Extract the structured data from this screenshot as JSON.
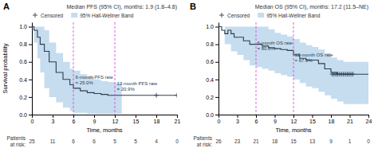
{
  "chart_data": [
    {
      "type": "step",
      "panel_label": "A",
      "title": "Median PFS (95% CI), months: 1.9 (1.8–4.8)",
      "xlabel": "Time, months",
      "ylabel": "Survival probability",
      "xlim": [
        0,
        21
      ],
      "ylim": [
        0,
        1.05
      ],
      "xticks": [
        0,
        3,
        6,
        9,
        12,
        15,
        18,
        21
      ],
      "yticks": [
        {
          "value": 0.0,
          "label": "0.0"
        },
        0.2,
        0.4,
        0.6,
        0.8,
        {
          "value": 1.0,
          "label": "1.0"
        }
      ],
      "grid": false,
      "legend": "top",
      "series": [
        {
          "color": "#2c3e50",
          "x": [
            0,
            0.3,
            0.3,
            0.8,
            0.8,
            1.2,
            1.2,
            1.8,
            1.8,
            2.5,
            2.5,
            3.5,
            3.5,
            4.5,
            4.5,
            5.5,
            5.5,
            6.0,
            6.0,
            7.0,
            7.0,
            8.0,
            8.0,
            9.0,
            9.0,
            10.0,
            10.0,
            11.0,
            11.0,
            12.0,
            12.0,
            13.0,
            13.0,
            18.0,
            18.0,
            21.0
          ],
          "values": [
            1.0,
            1.0,
            0.96,
            0.96,
            0.88,
            0.88,
            0.8,
            0.8,
            0.72,
            0.72,
            0.6,
            0.6,
            0.48,
            0.48,
            0.4,
            0.4,
            0.34,
            0.34,
            0.3,
            0.3,
            0.27,
            0.27,
            0.25,
            0.25,
            0.24,
            0.24,
            0.23,
            0.23,
            0.22,
            0.22,
            0.22,
            0.22,
            0.22,
            0.22,
            0.22,
            0.22
          ]
        },
        {
          "name": "Censored",
          "type": "scatter",
          "marker": "plus",
          "color": "#2c3e50",
          "x": [
            18.0,
            21.0
          ],
          "values": [
            0.22,
            0.22
          ]
        },
        {
          "name": "95% Hall-Wellner Band",
          "type": "area",
          "color": "#aecde8",
          "x": [
            0,
            0.3,
            0.8,
            1.2,
            1.8,
            2.5,
            3.5,
            4.5,
            5.5,
            6.0,
            7.0,
            8.0,
            9.0,
            10.0,
            11.0,
            12.0,
            13.0
          ],
          "lower": [
            1.0,
            0.82,
            0.64,
            0.48,
            0.3,
            0.2,
            0.14,
            0.08,
            0.04,
            0.02,
            0.02,
            0.01,
            0.01,
            0.01,
            0.01,
            0.01,
            0.01
          ],
          "upper": [
            1.0,
            1.0,
            1.0,
            1.0,
            0.96,
            0.82,
            0.7,
            0.6,
            0.52,
            0.5,
            0.46,
            0.43,
            0.4,
            0.38,
            0.37,
            0.36,
            0.36
          ]
        }
      ],
      "vlines": [
        {
          "x": 6,
          "color": "#cc44cc",
          "line_style": "dashed"
        },
        {
          "x": 12,
          "color": "#cc44cc",
          "line_style": "dashed"
        }
      ],
      "annotations": [
        {
          "x": 6.3,
          "y": 0.33,
          "text": "6-month PFS rate\n= 25.0%"
        },
        {
          "x": 12.3,
          "y": 0.26,
          "text": "12-month PFS rate\n= 20.9%"
        }
      ],
      "risk_label": "Patients\nat risk:",
      "risk_times": [
        0,
        3,
        6,
        9,
        12,
        15,
        18,
        21
      ],
      "patients_at_risk": [
        25,
        11,
        6,
        6,
        5,
        5,
        4,
        0
      ]
    },
    {
      "type": "step",
      "panel_label": "B",
      "title": "Median OS (95% CI), months: 17.2 (11.5–NE)",
      "xlabel": "Time, months",
      "xlim": [
        0,
        24
      ],
      "ylim": [
        0,
        1.05
      ],
      "xticks": [
        0,
        3,
        6,
        9,
        12,
        15,
        18,
        21,
        24
      ],
      "yticks": [
        {
          "value": 0.0,
          "label": "0.0"
        },
        0.2,
        0.4,
        0.6,
        0.8,
        {
          "value": 1.0,
          "label": "1.0"
        }
      ],
      "grid": false,
      "legend": "top",
      "series": [
        {
          "color": "#2c3e50",
          "x": [
            0,
            0.5,
            0.5,
            1.0,
            1.0,
            1.5,
            1.5,
            2.0,
            2.0,
            2.5,
            2.5,
            3.0,
            3.0,
            4.0,
            4.0,
            5.0,
            5.0,
            6.0,
            6.0,
            7.0,
            7.0,
            8.0,
            8.0,
            9.0,
            9.0,
            10.0,
            10.0,
            11.0,
            11.0,
            12.0,
            12.0,
            13.0,
            13.0,
            14.0,
            14.0,
            15.0,
            15.0,
            16.0,
            16.0,
            17.0,
            17.0,
            18.0,
            18.0,
            19.0,
            19.0,
            20.0,
            20.0,
            22.0,
            22.0,
            24.0
          ],
          "values": [
            1.0,
            1.0,
            0.96,
            0.96,
            0.92,
            0.92,
            0.96,
            0.96,
            0.92,
            0.92,
            0.88,
            0.88,
            0.88,
            0.88,
            0.84,
            0.84,
            0.8,
            0.8,
            0.8,
            0.8,
            0.78,
            0.78,
            0.76,
            0.76,
            0.75,
            0.75,
            0.74,
            0.74,
            0.73,
            0.73,
            0.68,
            0.68,
            0.64,
            0.64,
            0.62,
            0.62,
            0.62,
            0.62,
            0.58,
            0.58,
            0.52,
            0.52,
            0.48,
            0.48,
            0.46,
            0.46,
            0.46,
            0.46,
            0.46,
            0.46
          ]
        },
        {
          "name": "Censored",
          "type": "scatter",
          "marker": "plus",
          "color": "#2c3e50",
          "x": [
            18.2,
            18.5,
            18.8,
            19.1,
            19.4,
            19.7,
            20.0,
            20.3,
            20.6,
            20.9,
            21.2,
            21.5
          ],
          "values": [
            0.46,
            0.46,
            0.46,
            0.46,
            0.46,
            0.46,
            0.46,
            0.46,
            0.46,
            0.46,
            0.46,
            0.46
          ]
        },
        {
          "name": "95% Hall-Wellner Band",
          "type": "area",
          "color": "#aecde8",
          "x": [
            0,
            1,
            2,
            3,
            4,
            5,
            6,
            7,
            8,
            9,
            10,
            11,
            12,
            13,
            14,
            15,
            16,
            17,
            18,
            19,
            20,
            22,
            24
          ],
          "lower": [
            1.0,
            0.8,
            0.72,
            0.68,
            0.62,
            0.56,
            0.54,
            0.52,
            0.5,
            0.47,
            0.45,
            0.43,
            0.4,
            0.36,
            0.32,
            0.3,
            0.26,
            0.22,
            0.18,
            0.15,
            0.12,
            0.12,
            0.12
          ],
          "upper": [
            1.0,
            1.0,
            1.0,
            1.0,
            1.0,
            1.0,
            1.0,
            1.0,
            0.97,
            0.93,
            0.91,
            0.89,
            0.86,
            0.82,
            0.79,
            0.77,
            0.74,
            0.7,
            0.65,
            0.62,
            0.6,
            0.6,
            0.6
          ]
        }
      ],
      "vlines": [
        {
          "x": 6,
          "color": "#cc44cc",
          "line_style": "dashed"
        },
        {
          "x": 12,
          "color": "#cc44cc",
          "line_style": "dashed"
        }
      ],
      "annotations": [
        {
          "x": 6.2,
          "y": 0.72,
          "text": "6-month OS rate\n= 80.8%"
        },
        {
          "x": 12.2,
          "y": 0.58,
          "text": "12-month OS rate\n= 67.9%"
        }
      ],
      "risk_label": "Patients\nat risk:",
      "risk_times": [
        0,
        3,
        6,
        9,
        12,
        15,
        18,
        21,
        24
      ],
      "patients_at_risk": [
        26,
        23,
        21,
        18,
        15,
        13,
        9,
        1,
        0
      ]
    }
  ]
}
